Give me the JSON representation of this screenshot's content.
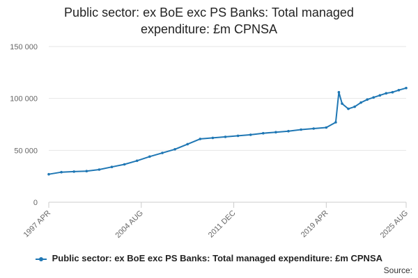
{
  "title_lines": [
    "Public sector: ex BoE exc PS Banks: Total managed",
    "expenditure: £m CPNSA"
  ],
  "source_label": "Source:",
  "colors": {
    "series": "#1f77b4",
    "grid": "#e6e6e6",
    "axis": "#cccccc"
  },
  "chart_data": {
    "type": "line",
    "title": "Public sector: ex BoE exc PS Banks: Total managed expenditure: £m CPNSA",
    "xlabel": "",
    "ylabel": "",
    "ylim": [
      0,
      150000
    ],
    "yticks": [
      0,
      50000,
      100000,
      150000
    ],
    "ytick_labels": [
      "0",
      "50 000",
      "100 000",
      "150 000"
    ],
    "xlim": [
      "1997-04",
      "2025-08"
    ],
    "xticks": [
      "1997-04",
      "2004-08",
      "2011-12",
      "2019-04",
      "2025-08"
    ],
    "xtick_labels": [
      "1997 APR",
      "2004 AUG",
      "2011 DEC",
      "2019 APR",
      "2025 AUG"
    ],
    "grid": true,
    "legend_position": "bottom",
    "series": [
      {
        "name": "Public sector: ex BoE exc PS Banks: Total managed expenditure: £m CPNSA",
        "x": [
          "1997-04",
          "1998-04",
          "1999-04",
          "2000-04",
          "2001-04",
          "2002-04",
          "2003-04",
          "2004-04",
          "2005-04",
          "2006-04",
          "2007-04",
          "2008-04",
          "2009-04",
          "2010-04",
          "2011-04",
          "2012-04",
          "2013-04",
          "2014-04",
          "2015-04",
          "2016-04",
          "2017-04",
          "2018-04",
          "2019-04",
          "2020-01",
          "2020-04",
          "2020-07",
          "2021-01",
          "2021-07",
          "2022-01",
          "2022-07",
          "2023-01",
          "2023-07",
          "2024-01",
          "2024-07",
          "2025-01",
          "2025-08"
        ],
        "y": [
          27000,
          29000,
          29500,
          30000,
          31500,
          34000,
          36500,
          40000,
          44000,
          47500,
          51000,
          56000,
          61000,
          62000,
          63000,
          64000,
          65000,
          66500,
          67500,
          68500,
          70000,
          71000,
          72000,
          77000,
          106000,
          95000,
          90000,
          92000,
          96000,
          99000,
          101000,
          103000,
          105000,
          106000,
          108000,
          110000
        ]
      }
    ]
  }
}
